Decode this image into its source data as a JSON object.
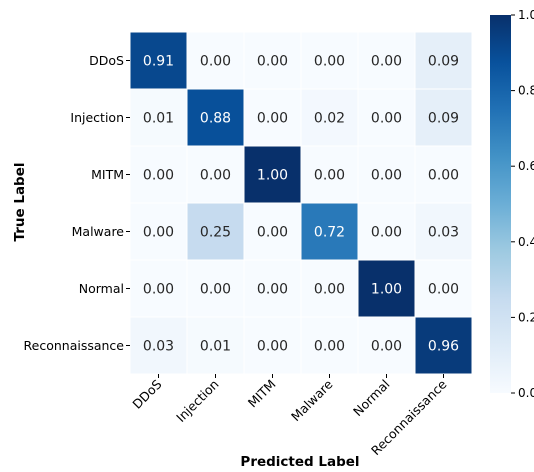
{
  "chart_data": {
    "type": "heatmap",
    "x_labels": [
      "DDoS",
      "Injection",
      "MITM",
      "Malware",
      "Normal",
      "Reconnaissance"
    ],
    "y_labels": [
      "DDoS",
      "Injection",
      "MITM",
      "Malware",
      "Normal",
      "Reconnaissance"
    ],
    "cell_text": [
      [
        "0.91",
        "0.00",
        "0.00",
        "0.00",
        "0.00",
        "0.09"
      ],
      [
        "0.01",
        "0.88",
        "0.00",
        "0.02",
        "0.00",
        "0.09"
      ],
      [
        "0.00",
        "0.00",
        "1.00",
        "0.00",
        "0.00",
        "0.00"
      ],
      [
        "0.00",
        "0.25",
        "0.00",
        "0.72",
        "0.00",
        "0.03"
      ],
      [
        "0.00",
        "0.00",
        "0.00",
        "0.00",
        "1.00",
        "0.00"
      ],
      [
        "0.03",
        "0.01",
        "0.00",
        "0.00",
        "0.00",
        "0.96"
      ]
    ],
    "values": [
      [
        0.91,
        0.0,
        0.0,
        0.0,
        0.0,
        0.09
      ],
      [
        0.01,
        0.88,
        0.0,
        0.02,
        0.0,
        0.09
      ],
      [
        0.0,
        0.0,
        1.0,
        0.0,
        0.0,
        0.0
      ],
      [
        0.0,
        0.25,
        0.0,
        0.72,
        0.0,
        0.03
      ],
      [
        0.0,
        0.0,
        0.0,
        0.0,
        1.0,
        0.0
      ],
      [
        0.03,
        0.01,
        0.0,
        0.0,
        0.0,
        0.96
      ]
    ],
    "xlabel": "Predicted Label",
    "ylabel": "True Label",
    "colorbar": {
      "range": [
        0.0,
        1.0
      ],
      "ticks": [
        0.0,
        0.2,
        0.4,
        0.6,
        0.8,
        1.0
      ],
      "tick_labels": [
        "0.0",
        "0.2",
        "0.4",
        "0.6",
        "0.8",
        "1.0"
      ]
    },
    "colormap": "Blues",
    "colors": {
      "low": "#f7fbff",
      "high": "#08306b",
      "cell_border": "#ffffff"
    }
  }
}
